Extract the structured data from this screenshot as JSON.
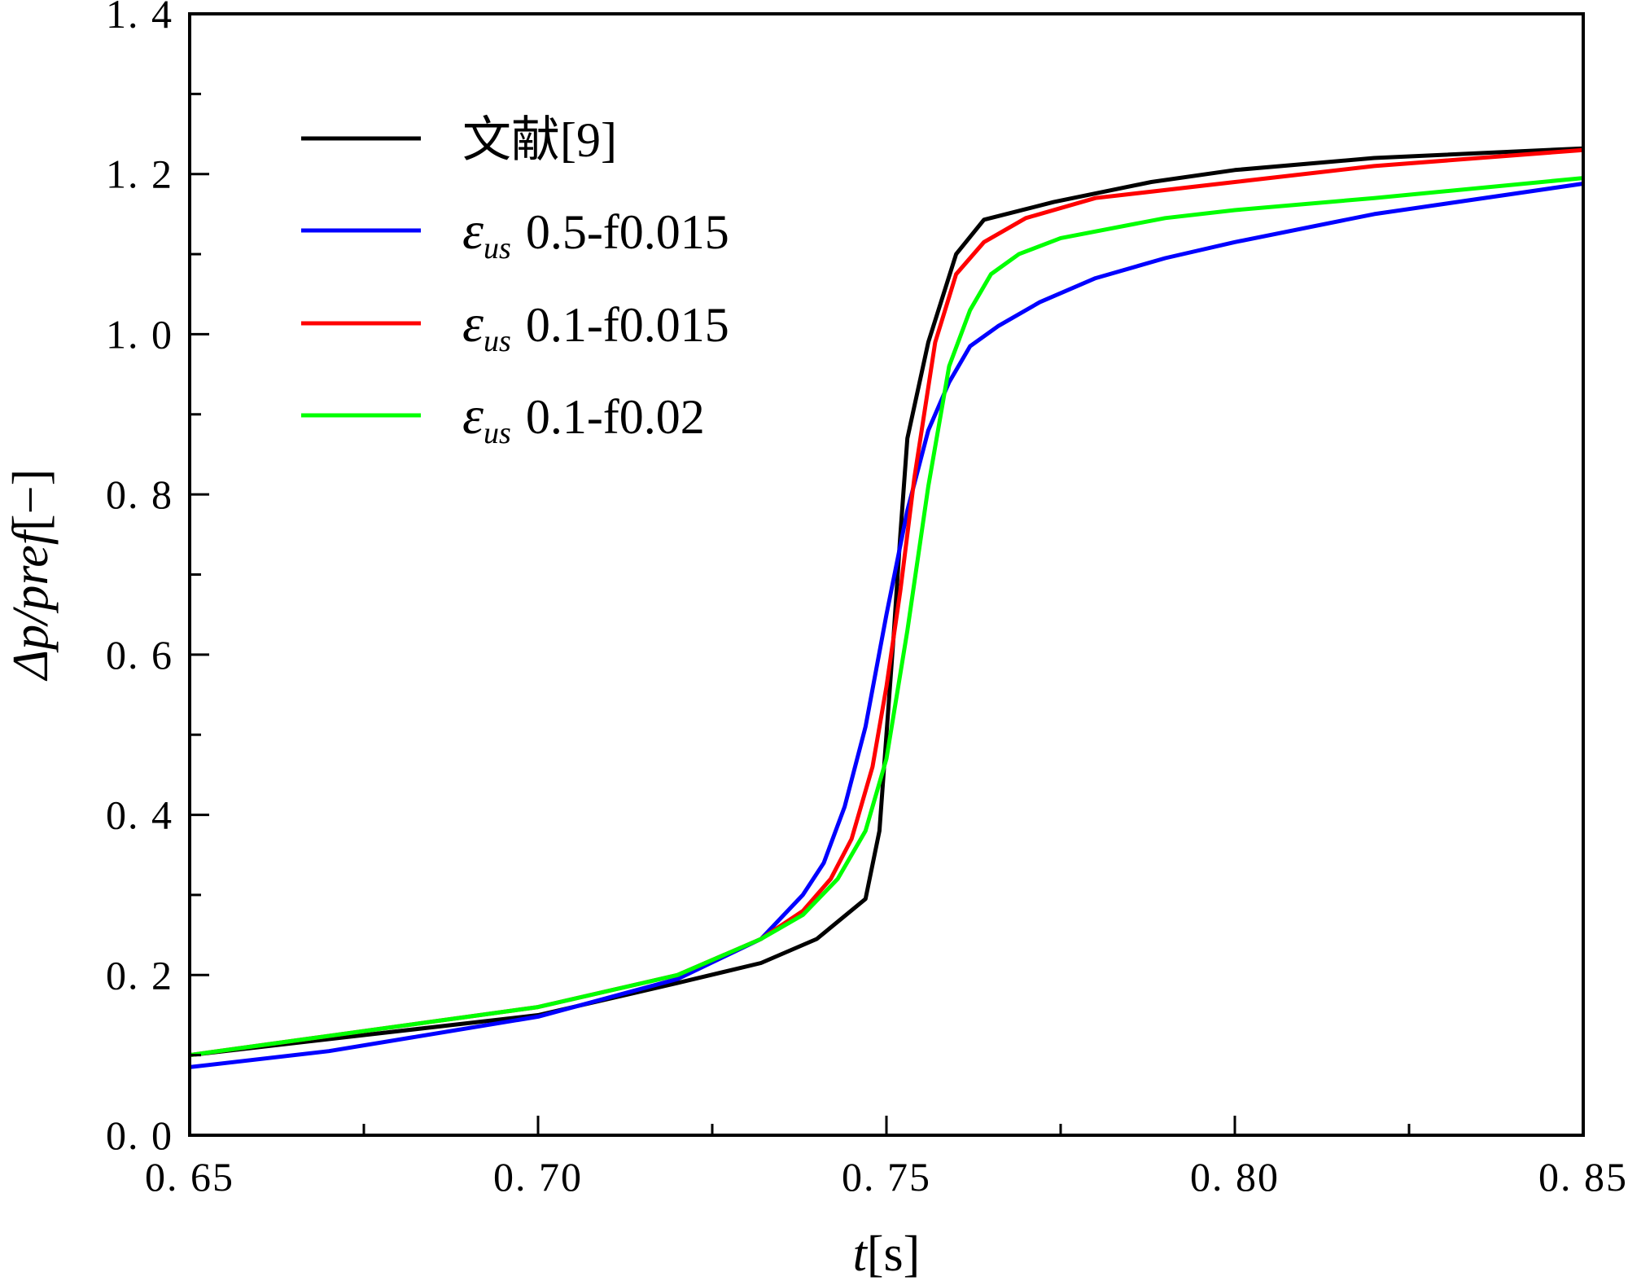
{
  "chart_data": {
    "type": "line",
    "title": "",
    "xlabel": {
      "italic": "t",
      "rest": "[s]"
    },
    "ylabel": {
      "italic": "Δp/pref",
      "rest": "[−]"
    },
    "xlim": [
      0.65,
      0.85
    ],
    "ylim": [
      0.0,
      1.4
    ],
    "x_ticks": [
      0.65,
      0.7,
      0.75,
      0.8,
      0.85
    ],
    "x_tick_labels": [
      "0. 65",
      "0. 70",
      "0. 75",
      "0. 80",
      "0. 85"
    ],
    "y_ticks": [
      0.0,
      0.2,
      0.4,
      0.6,
      0.8,
      1.0,
      1.2,
      1.4
    ],
    "y_tick_labels": [
      "0. 0",
      "0. 2",
      "0. 4",
      "0. 6",
      "0. 8",
      "1. 0",
      "1. 2",
      "1. 4"
    ],
    "grid": false,
    "legend_placement": "top-left",
    "series": [
      {
        "name": "文献[9]",
        "label": {
          "symbol": "",
          "sub": "",
          "text": "文献[9]"
        },
        "color": "#000000",
        "x": [
          0.65,
          0.7,
          0.72,
          0.732,
          0.74,
          0.747,
          0.749,
          0.75,
          0.751,
          0.752,
          0.753,
          0.756,
          0.76,
          0.764,
          0.774,
          0.788,
          0.8,
          0.82,
          0.85
        ],
        "y": [
          0.1,
          0.15,
          0.19,
          0.215,
          0.245,
          0.295,
          0.38,
          0.5,
          0.62,
          0.75,
          0.87,
          0.99,
          1.1,
          1.143,
          1.165,
          1.19,
          1.205,
          1.22,
          1.232
        ]
      },
      {
        "name": "εus 0.5-f0.015",
        "label": {
          "symbol": "ε",
          "sub": "us",
          "text": "0.5-f0.015"
        },
        "color": "#0000ff",
        "x": [
          0.65,
          0.67,
          0.7,
          0.72,
          0.732,
          0.738,
          0.741,
          0.744,
          0.747,
          0.75,
          0.753,
          0.756,
          0.759,
          0.762,
          0.766,
          0.772,
          0.78,
          0.79,
          0.8,
          0.82,
          0.85
        ],
        "y": [
          0.085,
          0.105,
          0.148,
          0.195,
          0.245,
          0.3,
          0.34,
          0.41,
          0.51,
          0.65,
          0.78,
          0.88,
          0.94,
          0.985,
          1.01,
          1.04,
          1.07,
          1.095,
          1.115,
          1.15,
          1.188
        ]
      },
      {
        "name": "εus 0.1-f0.015",
        "label": {
          "symbol": "ε",
          "sub": "us",
          "text": "0.1-f0.015"
        },
        "color": "#ff0000",
        "x": [
          0.65,
          0.7,
          0.72,
          0.732,
          0.738,
          0.742,
          0.745,
          0.748,
          0.75,
          0.752,
          0.754,
          0.757,
          0.76,
          0.764,
          0.77,
          0.78,
          0.8,
          0.82,
          0.85
        ],
        "y": [
          0.1,
          0.16,
          0.2,
          0.245,
          0.28,
          0.32,
          0.37,
          0.46,
          0.56,
          0.68,
          0.82,
          0.99,
          1.075,
          1.115,
          1.145,
          1.17,
          1.19,
          1.21,
          1.23
        ]
      },
      {
        "name": "εus 0.1-f0.02",
        "label": {
          "symbol": "ε",
          "sub": "us",
          "text": "0.1-f0.02"
        },
        "color": "#00ff00",
        "x": [
          0.65,
          0.7,
          0.72,
          0.732,
          0.738,
          0.743,
          0.747,
          0.75,
          0.753,
          0.756,
          0.759,
          0.762,
          0.765,
          0.769,
          0.775,
          0.79,
          0.8,
          0.82,
          0.85
        ],
        "y": [
          0.1,
          0.16,
          0.2,
          0.245,
          0.275,
          0.32,
          0.38,
          0.47,
          0.63,
          0.81,
          0.96,
          1.03,
          1.075,
          1.1,
          1.12,
          1.145,
          1.155,
          1.17,
          1.195
        ]
      }
    ]
  }
}
